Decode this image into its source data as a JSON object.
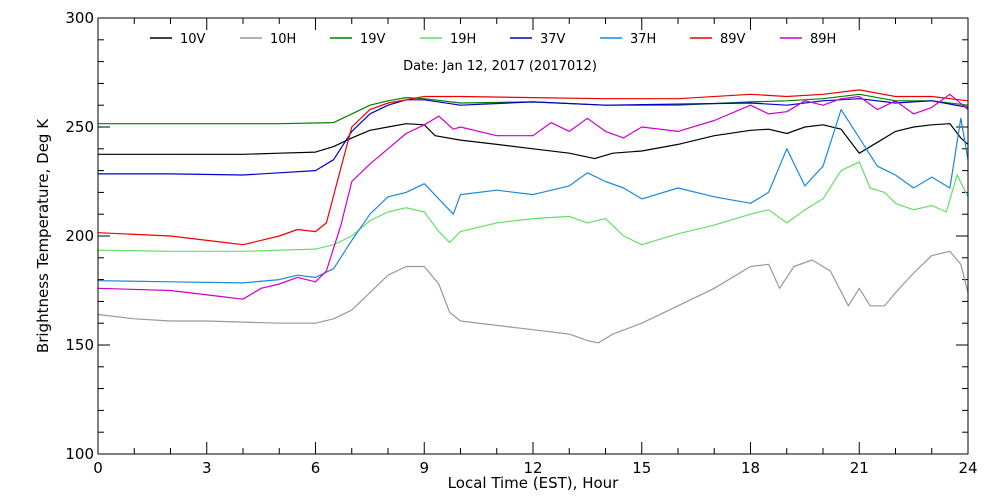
{
  "chart_data": {
    "type": "line",
    "title": "",
    "subtitle": "Date: Jan 12, 2017 (2017012)",
    "xlabel": "Local Time (EST), Hour",
    "ylabel": "Brightness Temperature, Deg K",
    "xlim": [
      0,
      24
    ],
    "ylim": [
      100,
      300
    ],
    "xticks": [
      0,
      3,
      6,
      9,
      12,
      15,
      18,
      21,
      24
    ],
    "yticks": [
      100,
      150,
      200,
      250,
      300
    ],
    "grid": false,
    "legend_position": "top",
    "series": [
      {
        "name": "10V",
        "color": "#000000",
        "points": [
          [
            0,
            237.5
          ],
          [
            1,
            237.5
          ],
          [
            2,
            237.5
          ],
          [
            3,
            237.5
          ],
          [
            4,
            237.5
          ],
          [
            5,
            238
          ],
          [
            6,
            238.5
          ],
          [
            6.5,
            241
          ],
          [
            7,
            245
          ],
          [
            7.5,
            248.5
          ],
          [
            8,
            250
          ],
          [
            8.5,
            251.5
          ],
          [
            9,
            251
          ],
          [
            9.3,
            246
          ],
          [
            10,
            244
          ],
          [
            11,
            242
          ],
          [
            12,
            240
          ],
          [
            13,
            238
          ],
          [
            13.7,
            235.5
          ],
          [
            14.2,
            238
          ],
          [
            15,
            239
          ],
          [
            16,
            242
          ],
          [
            17,
            246
          ],
          [
            18,
            248.5
          ],
          [
            18.5,
            249
          ],
          [
            19,
            247
          ],
          [
            19.5,
            250
          ],
          [
            20,
            251
          ],
          [
            20.5,
            249
          ],
          [
            21,
            238
          ],
          [
            21.5,
            243
          ],
          [
            22,
            248
          ],
          [
            22.5,
            250
          ],
          [
            23,
            251
          ],
          [
            23.5,
            251.5
          ],
          [
            23.8,
            245
          ],
          [
            24,
            242
          ]
        ]
      },
      {
        "name": "10H",
        "color": "#999999",
        "points": [
          [
            0,
            164
          ],
          [
            1,
            162
          ],
          [
            2,
            161
          ],
          [
            3,
            161
          ],
          [
            4,
            160.5
          ],
          [
            5,
            160
          ],
          [
            6,
            160
          ],
          [
            6.5,
            162
          ],
          [
            7,
            166
          ],
          [
            7.5,
            174
          ],
          [
            8,
            182
          ],
          [
            8.5,
            186
          ],
          [
            9,
            186
          ],
          [
            9.4,
            178
          ],
          [
            9.7,
            165
          ],
          [
            10,
            161
          ],
          [
            11,
            159
          ],
          [
            12,
            157
          ],
          [
            13,
            155
          ],
          [
            13.5,
            152
          ],
          [
            13.8,
            151
          ],
          [
            14.2,
            155
          ],
          [
            15,
            160
          ],
          [
            16,
            168
          ],
          [
            17,
            176
          ],
          [
            18,
            186
          ],
          [
            18.5,
            187
          ],
          [
            18.8,
            176
          ],
          [
            19.2,
            186
          ],
          [
            19.7,
            189
          ],
          [
            20.2,
            184
          ],
          [
            20.7,
            168
          ],
          [
            21,
            176
          ],
          [
            21.3,
            168
          ],
          [
            21.7,
            168
          ],
          [
            22,
            174
          ],
          [
            22.5,
            183
          ],
          [
            23,
            191
          ],
          [
            23.5,
            193
          ],
          [
            23.8,
            187
          ],
          [
            24,
            174
          ]
        ]
      },
      {
        "name": "19V",
        "color": "#008000",
        "points": [
          [
            0,
            251.5
          ],
          [
            3,
            251.5
          ],
          [
            5,
            251.5
          ],
          [
            6.5,
            252
          ],
          [
            7,
            256
          ],
          [
            7.5,
            260
          ],
          [
            8,
            262
          ],
          [
            8.5,
            263.5
          ],
          [
            9,
            263
          ],
          [
            10,
            261
          ],
          [
            12,
            261.5
          ],
          [
            14,
            260
          ],
          [
            16,
            260
          ],
          [
            18,
            261.5
          ],
          [
            19,
            262
          ],
          [
            20,
            263
          ],
          [
            21,
            265
          ],
          [
            22,
            262
          ],
          [
            23,
            262
          ],
          [
            24,
            260
          ]
        ]
      },
      {
        "name": "19H",
        "color": "#66dd66",
        "points": [
          [
            0,
            193.5
          ],
          [
            2,
            193
          ],
          [
            4,
            193
          ],
          [
            5,
            193.5
          ],
          [
            6,
            194
          ],
          [
            6.5,
            196
          ],
          [
            7,
            200
          ],
          [
            7.5,
            207
          ],
          [
            8,
            211
          ],
          [
            8.5,
            213
          ],
          [
            9,
            211
          ],
          [
            9.4,
            202
          ],
          [
            9.7,
            197
          ],
          [
            10,
            202
          ],
          [
            11,
            206
          ],
          [
            12,
            208
          ],
          [
            13,
            209
          ],
          [
            13.5,
            206
          ],
          [
            14,
            208
          ],
          [
            14.5,
            200
          ],
          [
            15,
            196
          ],
          [
            16,
            201
          ],
          [
            17,
            205
          ],
          [
            18,
            210
          ],
          [
            18.5,
            212
          ],
          [
            19,
            206
          ],
          [
            19.5,
            212
          ],
          [
            20,
            217
          ],
          [
            20.5,
            230
          ],
          [
            21,
            234
          ],
          [
            21.3,
            222
          ],
          [
            21.7,
            220
          ],
          [
            22,
            215
          ],
          [
            22.5,
            212
          ],
          [
            23,
            214
          ],
          [
            23.4,
            211
          ],
          [
            23.7,
            228
          ],
          [
            24,
            218
          ]
        ]
      },
      {
        "name": "37V",
        "color": "#0000cc",
        "points": [
          [
            0,
            228.5
          ],
          [
            2,
            228.5
          ],
          [
            4,
            228
          ],
          [
            5,
            229
          ],
          [
            6,
            230
          ],
          [
            6.5,
            235
          ],
          [
            7,
            248
          ],
          [
            7.5,
            256
          ],
          [
            8,
            260
          ],
          [
            8.5,
            262.5
          ],
          [
            9,
            262.5
          ],
          [
            10,
            260
          ],
          [
            12,
            261.5
          ],
          [
            14,
            260
          ],
          [
            16,
            260.5
          ],
          [
            18,
            261
          ],
          [
            19,
            260
          ],
          [
            20,
            262
          ],
          [
            21,
            263
          ],
          [
            22,
            261
          ],
          [
            23,
            262
          ],
          [
            24,
            259
          ]
        ]
      },
      {
        "name": "37H",
        "color": "#1a88dd",
        "points": [
          [
            0,
            179.5
          ],
          [
            2,
            179
          ],
          [
            4,
            178.5
          ],
          [
            5,
            180
          ],
          [
            5.5,
            182
          ],
          [
            6,
            181
          ],
          [
            6.5,
            185
          ],
          [
            7,
            198
          ],
          [
            7.5,
            210
          ],
          [
            8,
            218
          ],
          [
            8.5,
            220
          ],
          [
            9,
            224
          ],
          [
            9.4,
            217
          ],
          [
            9.8,
            210
          ],
          [
            10,
            219
          ],
          [
            11,
            221
          ],
          [
            12,
            219
          ],
          [
            13,
            223
          ],
          [
            13.5,
            229
          ],
          [
            14,
            225
          ],
          [
            14.5,
            222
          ],
          [
            15,
            217
          ],
          [
            16,
            222
          ],
          [
            17,
            218
          ],
          [
            18,
            215
          ],
          [
            18.5,
            220
          ],
          [
            19,
            240
          ],
          [
            19.5,
            223
          ],
          [
            20,
            232
          ],
          [
            20.5,
            258
          ],
          [
            21,
            245
          ],
          [
            21.5,
            232
          ],
          [
            22,
            228
          ],
          [
            22.5,
            222
          ],
          [
            23,
            227
          ],
          [
            23.5,
            222
          ],
          [
            23.8,
            254
          ],
          [
            24,
            235
          ]
        ]
      },
      {
        "name": "89V",
        "color": "#ee0000",
        "points": [
          [
            0,
            201.5
          ],
          [
            2,
            200
          ],
          [
            3.5,
            197
          ],
          [
            4,
            196
          ],
          [
            5,
            200
          ],
          [
            5.5,
            203
          ],
          [
            6,
            202
          ],
          [
            6.3,
            206
          ],
          [
            6.6,
            225
          ],
          [
            7,
            250
          ],
          [
            7.5,
            258
          ],
          [
            8,
            261
          ],
          [
            8.5,
            262.5
          ],
          [
            9,
            264
          ],
          [
            10,
            264
          ],
          [
            12,
            263.5
          ],
          [
            14,
            263
          ],
          [
            16,
            263
          ],
          [
            18,
            265
          ],
          [
            19,
            264
          ],
          [
            20,
            265
          ],
          [
            21,
            267
          ],
          [
            22,
            264
          ],
          [
            23,
            264
          ],
          [
            24,
            262
          ]
        ]
      },
      {
        "name": "89H",
        "color": "#cc00cc",
        "points": [
          [
            0,
            176
          ],
          [
            2,
            175
          ],
          [
            3.5,
            172
          ],
          [
            4,
            171
          ],
          [
            4.5,
            176
          ],
          [
            5,
            178
          ],
          [
            5.5,
            181
          ],
          [
            6,
            179
          ],
          [
            6.3,
            184
          ],
          [
            6.7,
            205
          ],
          [
            7,
            225
          ],
          [
            7.5,
            233
          ],
          [
            8,
            240
          ],
          [
            8.5,
            247
          ],
          [
            9,
            251
          ],
          [
            9.4,
            255
          ],
          [
            9.8,
            249
          ],
          [
            10,
            250
          ],
          [
            11,
            246
          ],
          [
            12,
            246
          ],
          [
            12.5,
            252
          ],
          [
            13,
            248
          ],
          [
            13.5,
            254
          ],
          [
            14,
            248
          ],
          [
            14.5,
            245
          ],
          [
            15,
            250
          ],
          [
            16,
            248
          ],
          [
            17,
            253
          ],
          [
            18,
            260
          ],
          [
            18.5,
            256
          ],
          [
            19,
            257
          ],
          [
            19.5,
            262
          ],
          [
            20,
            260
          ],
          [
            20.5,
            263
          ],
          [
            21,
            264
          ],
          [
            21.5,
            258
          ],
          [
            22,
            262
          ],
          [
            22.5,
            256
          ],
          [
            23,
            259
          ],
          [
            23.5,
            265
          ],
          [
            24,
            258
          ]
        ]
      }
    ]
  }
}
